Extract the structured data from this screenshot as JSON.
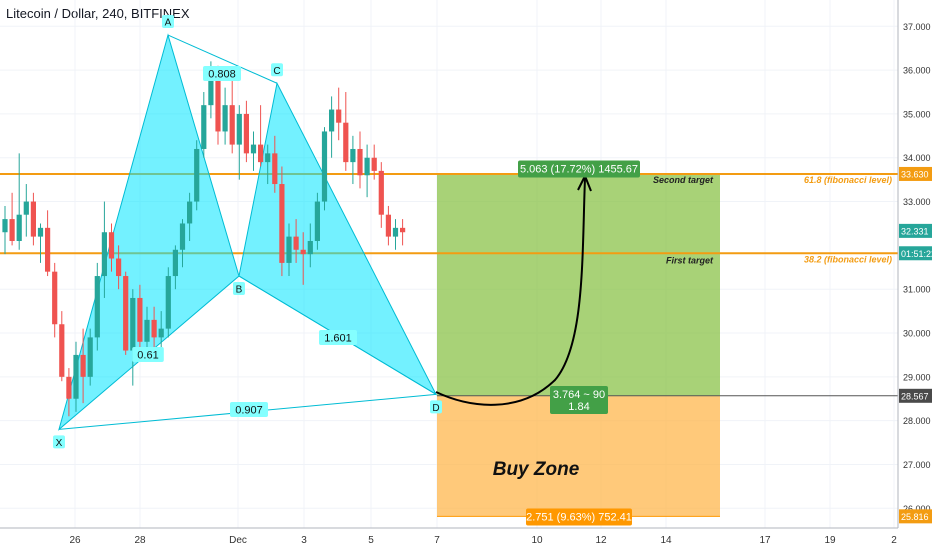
{
  "title": "Litecoin / Dollar, 240, BITFINEX",
  "chart_data": {
    "type": "candlestick",
    "symbol": "Litecoin / Dollar",
    "interval": "240",
    "exchange": "BITFINEX",
    "y_axis": {
      "ticks": [
        "37.000",
        "36.000",
        "35.000",
        "34.000",
        "33.000",
        "31.000",
        "30.000",
        "29.000",
        "28.000",
        "27.000",
        "26.000"
      ],
      "ylim": [
        25.55,
        37.6
      ]
    },
    "x_axis": {
      "ticks": [
        "26",
        "28",
        "Dec",
        "3",
        "5",
        "7",
        "10",
        "12",
        "14",
        "17",
        "19",
        "2"
      ]
    },
    "price_labels": [
      {
        "text": "33.630",
        "value": 33.63,
        "color": "#f39c12"
      },
      {
        "text": "32.331",
        "value": 32.331,
        "color": "#26a69a"
      },
      {
        "text": "01:51:22",
        "value": 31.82,
        "color": "#26a69a"
      },
      {
        "text": "28.567",
        "value": 28.567,
        "color": "#4a4a4a"
      },
      {
        "text": "25.816",
        "value": 25.816,
        "color": "#f39c12"
      }
    ],
    "horizontal_levels": [
      {
        "value": 33.63,
        "label": "Second target",
        "fib_label": "61.8 (fibonacci level)",
        "color": "#f39c12"
      },
      {
        "value": 31.82,
        "label": "First target",
        "fib_label": "38.2 (fibonacci level)",
        "color": "#f39c12"
      }
    ],
    "pattern_points": [
      {
        "name": "X",
        "date": "Nov 25",
        "price": 27.8
      },
      {
        "name": "A",
        "date": "Nov 28",
        "price": 36.8
      },
      {
        "name": "B",
        "date": "Dec 1",
        "price": 31.3
      },
      {
        "name": "C",
        "date": "Dec 2",
        "price": 35.7
      },
      {
        "name": "D",
        "date": "Dec 7",
        "price": 28.6
      }
    ],
    "pattern_ratios": [
      "0.808",
      "0.61",
      "1.601",
      "0.907"
    ],
    "position": {
      "entry": 28.567,
      "target": 33.63,
      "stop": 25.816,
      "target_label": "5.063 (17.72%) 1455.67",
      "stop_label": "2.751 (9.63%) 752.41",
      "rr_label_1": "3.764 ~ 90",
      "rr_label_2": "1.84",
      "zone_label": "Buy Zone"
    },
    "candles": [
      {
        "o": 32.3,
        "h": 32.9,
        "l": 31.8,
        "c": 32.6
      },
      {
        "o": 32.6,
        "h": 33.2,
        "l": 32.0,
        "c": 32.1
      },
      {
        "o": 32.1,
        "h": 34.1,
        "l": 31.9,
        "c": 32.7
      },
      {
        "o": 32.7,
        "h": 33.4,
        "l": 32.2,
        "c": 33.0
      },
      {
        "o": 33.0,
        "h": 33.2,
        "l": 32.0,
        "c": 32.2
      },
      {
        "o": 32.2,
        "h": 32.5,
        "l": 31.6,
        "c": 32.4
      },
      {
        "o": 32.4,
        "h": 32.8,
        "l": 31.3,
        "c": 31.4
      },
      {
        "o": 31.4,
        "h": 31.6,
        "l": 29.9,
        "c": 30.2
      },
      {
        "o": 30.2,
        "h": 30.5,
        "l": 28.9,
        "c": 29.0
      },
      {
        "o": 29.0,
        "h": 29.2,
        "l": 28.1,
        "c": 28.5
      },
      {
        "o": 28.5,
        "h": 29.8,
        "l": 28.2,
        "c": 29.5
      },
      {
        "o": 29.5,
        "h": 30.1,
        "l": 28.4,
        "c": 29.0
      },
      {
        "o": 29.0,
        "h": 30.1,
        "l": 28.8,
        "c": 29.9
      },
      {
        "o": 29.9,
        "h": 31.6,
        "l": 29.6,
        "c": 31.3
      },
      {
        "o": 31.3,
        "h": 33.0,
        "l": 30.8,
        "c": 32.3
      },
      {
        "o": 32.3,
        "h": 32.5,
        "l": 31.4,
        "c": 31.7
      },
      {
        "o": 31.7,
        "h": 32.0,
        "l": 31.0,
        "c": 31.3
      },
      {
        "o": 31.3,
        "h": 31.4,
        "l": 29.5,
        "c": 29.6
      },
      {
        "o": 29.6,
        "h": 31.0,
        "l": 28.8,
        "c": 30.8
      },
      {
        "o": 30.8,
        "h": 31.1,
        "l": 29.6,
        "c": 29.8
      },
      {
        "o": 29.8,
        "h": 30.6,
        "l": 29.4,
        "c": 30.3
      },
      {
        "o": 30.3,
        "h": 30.6,
        "l": 29.5,
        "c": 29.9
      },
      {
        "o": 29.9,
        "h": 30.5,
        "l": 29.6,
        "c": 30.1
      },
      {
        "o": 30.1,
        "h": 31.5,
        "l": 29.9,
        "c": 31.3
      },
      {
        "o": 31.3,
        "h": 32.0,
        "l": 31.0,
        "c": 31.9
      },
      {
        "o": 31.9,
        "h": 32.6,
        "l": 31.5,
        "c": 32.5
      },
      {
        "o": 32.5,
        "h": 33.2,
        "l": 32.1,
        "c": 33.0
      },
      {
        "o": 33.0,
        "h": 34.4,
        "l": 32.8,
        "c": 34.2
      },
      {
        "o": 34.2,
        "h": 35.5,
        "l": 34.0,
        "c": 35.2
      },
      {
        "o": 35.2,
        "h": 36.2,
        "l": 34.9,
        "c": 35.9
      },
      {
        "o": 35.9,
        "h": 36.1,
        "l": 34.3,
        "c": 34.6
      },
      {
        "o": 34.6,
        "h": 35.6,
        "l": 34.3,
        "c": 35.2
      },
      {
        "o": 35.2,
        "h": 35.8,
        "l": 34.1,
        "c": 34.3
      },
      {
        "o": 34.3,
        "h": 35.2,
        "l": 33.5,
        "c": 35.0
      },
      {
        "o": 35.0,
        "h": 35.3,
        "l": 33.9,
        "c": 34.1
      },
      {
        "o": 34.1,
        "h": 34.6,
        "l": 33.7,
        "c": 34.3
      },
      {
        "o": 34.3,
        "h": 35.2,
        "l": 33.8,
        "c": 33.9
      },
      {
        "o": 33.9,
        "h": 34.3,
        "l": 33.4,
        "c": 34.1
      },
      {
        "o": 34.1,
        "h": 34.5,
        "l": 33.2,
        "c": 33.4
      },
      {
        "o": 33.4,
        "h": 33.8,
        "l": 31.3,
        "c": 31.6
      },
      {
        "o": 31.6,
        "h": 32.5,
        "l": 31.3,
        "c": 32.2
      },
      {
        "o": 32.2,
        "h": 32.6,
        "l": 31.6,
        "c": 31.9
      },
      {
        "o": 31.9,
        "h": 32.3,
        "l": 31.1,
        "c": 31.8
      },
      {
        "o": 31.8,
        "h": 32.5,
        "l": 31.5,
        "c": 32.1
      },
      {
        "o": 32.1,
        "h": 33.2,
        "l": 31.9,
        "c": 33.0
      },
      {
        "o": 33.0,
        "h": 34.7,
        "l": 32.8,
        "c": 34.6
      },
      {
        "o": 34.6,
        "h": 35.4,
        "l": 34.0,
        "c": 35.1
      },
      {
        "o": 35.1,
        "h": 35.6,
        "l": 34.4,
        "c": 34.8
      },
      {
        "o": 34.8,
        "h": 35.5,
        "l": 33.7,
        "c": 33.9
      },
      {
        "o": 33.9,
        "h": 34.5,
        "l": 33.4,
        "c": 34.2
      },
      {
        "o": 34.2,
        "h": 34.6,
        "l": 33.3,
        "c": 33.6
      },
      {
        "o": 33.6,
        "h": 34.3,
        "l": 33.1,
        "c": 34.0
      },
      {
        "o": 34.0,
        "h": 34.3,
        "l": 33.5,
        "c": 33.7
      },
      {
        "o": 33.7,
        "h": 33.9,
        "l": 32.4,
        "c": 32.7
      },
      {
        "o": 32.7,
        "h": 32.9,
        "l": 32.0,
        "c": 32.2
      },
      {
        "o": 32.2,
        "h": 32.6,
        "l": 31.9,
        "c": 32.4
      },
      {
        "o": 32.4,
        "h": 32.6,
        "l": 32.0,
        "c": 32.3
      }
    ]
  }
}
